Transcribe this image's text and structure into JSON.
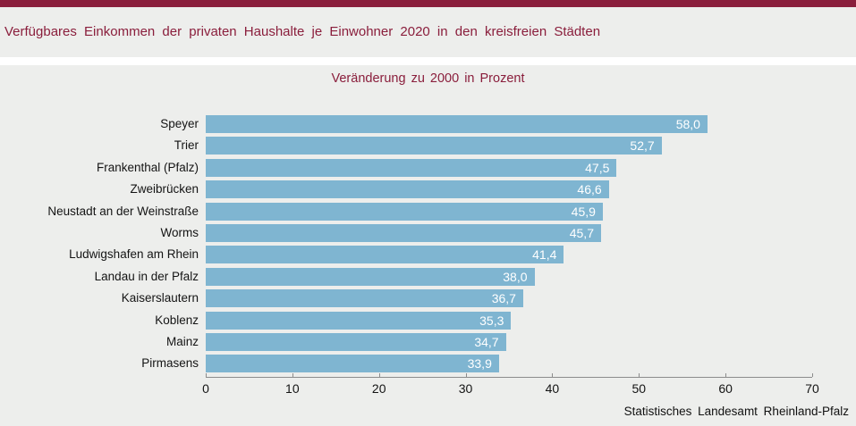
{
  "header": {
    "title": "Verfügbares Einkommen der privaten Haushalte je Einwohner 2020 in den kreisfreien Städten"
  },
  "chart_data": {
    "type": "bar",
    "orientation": "horizontal",
    "title": "Veränderung zu 2000 in Prozent",
    "categories": [
      "Speyer",
      "Trier",
      "Frankenthal (Pfalz)",
      "Zweibrücken",
      "Neustadt an der Weinstraße",
      "Worms",
      "Ludwigshafen am Rhein",
      "Landau in der Pfalz",
      "Kaiserslautern",
      "Koblenz",
      "Mainz",
      "Pirmasens"
    ],
    "values": [
      58.0,
      52.7,
      47.5,
      46.6,
      45.9,
      45.7,
      41.4,
      38.0,
      36.7,
      35.3,
      34.7,
      33.9
    ],
    "value_labels": [
      "58,0",
      "52,7",
      "47,5",
      "46,6",
      "45,9",
      "45,7",
      "41,4",
      "38,0",
      "36,7",
      "35,3",
      "34,7",
      "33,9"
    ],
    "x_ticks": [
      0,
      10,
      20,
      30,
      40,
      50,
      60,
      70
    ],
    "xlim": [
      0,
      70
    ],
    "grid": false,
    "legend": "none",
    "bar_color": "#7fb5d1"
  },
  "footer": {
    "source": "Statistisches Landesamt Rheinland-Pfalz"
  },
  "colors": {
    "accent": "#8a1e3c",
    "background": "#edeeec",
    "bar": "#7fb5d1",
    "axis": "#8c8c8c",
    "value_text": "#ffffff"
  }
}
